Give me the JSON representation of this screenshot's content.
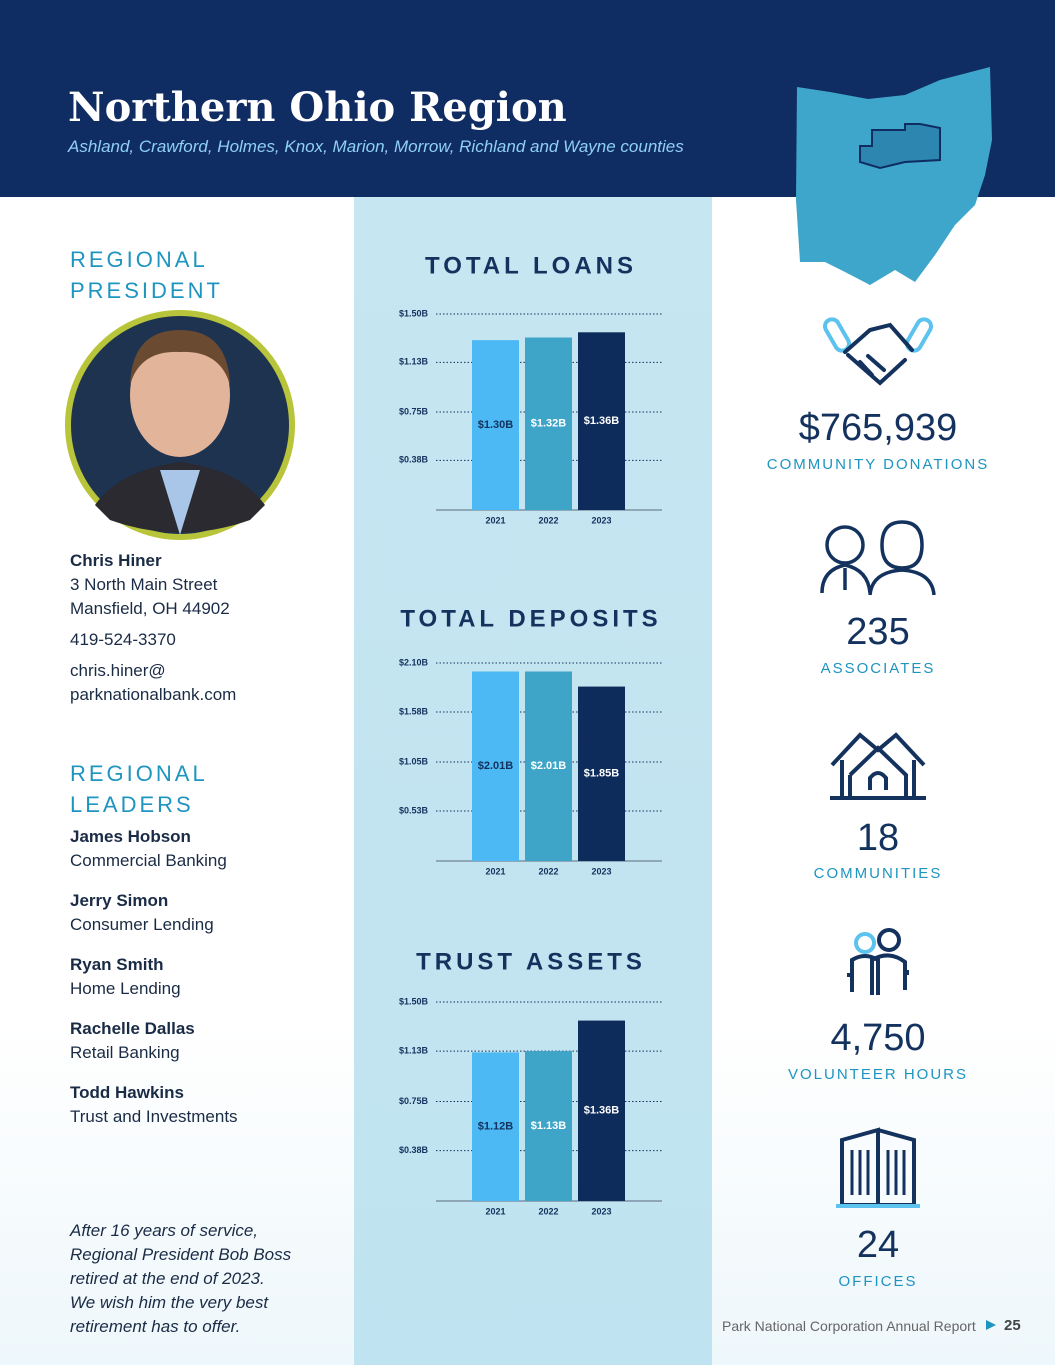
{
  "header": {
    "title": "Northern Ohio Region",
    "subtitle": "Ashland, Crawford, Holmes, Knox, Marion, Morrow, Richland and Wayne counties"
  },
  "president": {
    "heading": "REGIONAL PRESIDENT",
    "name": "Chris Hiner",
    "address": [
      "3 North Main Street",
      "Mansfield, OH 44902"
    ],
    "phone": "419-524-3370",
    "email": [
      "chris.hiner@",
      "parknationalbank.com"
    ]
  },
  "leaders": {
    "heading": "REGIONAL LEADERS",
    "people": [
      {
        "name": "James Hobson",
        "role": "Commercial Banking"
      },
      {
        "name": "Jerry Simon",
        "role": "Consumer Lending"
      },
      {
        "name": "Ryan Smith",
        "role": "Home Lending"
      },
      {
        "name": "Rachelle Dallas",
        "role": "Retail Banking"
      },
      {
        "name": "Todd Hawkins",
        "role": "Trust and Investments"
      }
    ]
  },
  "note": [
    "After 16 years of service,",
    "Regional President Bob Boss",
    "retired at the end of 2023.",
    "We wish him the very best",
    "retirement has to offer."
  ],
  "chart_data": [
    {
      "type": "bar",
      "title": "TOTAL LOANS",
      "categories": [
        "2021",
        "2022",
        "2023"
      ],
      "values": [
        1.3,
        1.32,
        1.36
      ],
      "value_labels": [
        "$1.30B",
        "$1.32B",
        "$1.36B"
      ],
      "colors": [
        "#4cb8f4",
        "#3ea4c8",
        "#0d2c5c"
      ],
      "label_colors": [
        "#14325e",
        "#ffffff",
        "#ffffff"
      ],
      "ylim": [
        0,
        1.5
      ],
      "yticks": [
        {
          "value": 0.38,
          "label": "$0.38B"
        },
        {
          "value": 0.75,
          "label": "$0.75B"
        },
        {
          "value": 1.13,
          "label": "$1.13B"
        },
        {
          "value": 1.5,
          "label": "$1.50B"
        }
      ],
      "grid": true
    },
    {
      "type": "bar",
      "title": "TOTAL DEPOSITS",
      "categories": [
        "2021",
        "2022",
        "2023"
      ],
      "values": [
        2.01,
        2.01,
        1.85
      ],
      "value_labels": [
        "$2.01B",
        "$2.01B",
        "$1.85B"
      ],
      "colors": [
        "#4cb8f4",
        "#3ea4c8",
        "#0d2c5c"
      ],
      "label_colors": [
        "#14325e",
        "#ffffff",
        "#ffffff"
      ],
      "ylim": [
        0,
        2.1
      ],
      "yticks": [
        {
          "value": 0.53,
          "label": "$0.53B"
        },
        {
          "value": 1.05,
          "label": "$1.05B"
        },
        {
          "value": 1.58,
          "label": "$1.58B"
        },
        {
          "value": 2.1,
          "label": "$2.10B"
        }
      ],
      "grid": true
    },
    {
      "type": "bar",
      "title": "TRUST ASSETS",
      "categories": [
        "2021",
        "2022",
        "2023"
      ],
      "values": [
        1.12,
        1.13,
        1.36
      ],
      "value_labels": [
        "$1.12B",
        "$1.13B",
        "$1.36B"
      ],
      "colors": [
        "#4cb8f4",
        "#3ea4c8",
        "#0d2c5c"
      ],
      "label_colors": [
        "#14325e",
        "#ffffff",
        "#ffffff"
      ],
      "ylim": [
        0,
        1.5
      ],
      "yticks": [
        {
          "value": 0.38,
          "label": "$0.38B"
        },
        {
          "value": 0.75,
          "label": "$0.75B"
        },
        {
          "value": 1.13,
          "label": "$1.13B"
        },
        {
          "value": 1.5,
          "label": "$1.50B"
        }
      ],
      "grid": true
    }
  ],
  "stats": [
    {
      "value": "$765,939",
      "label": "COMMUNITY DONATIONS"
    },
    {
      "value": "235",
      "label": "ASSOCIATES"
    },
    {
      "value": "18",
      "label": "COMMUNITIES"
    },
    {
      "value": "4,750",
      "label": "VOLUNTEER HOURS"
    },
    {
      "value": "24",
      "label": "OFFICES"
    }
  ],
  "footer": {
    "text": "Park National Corporation Annual Report",
    "page": "25"
  }
}
